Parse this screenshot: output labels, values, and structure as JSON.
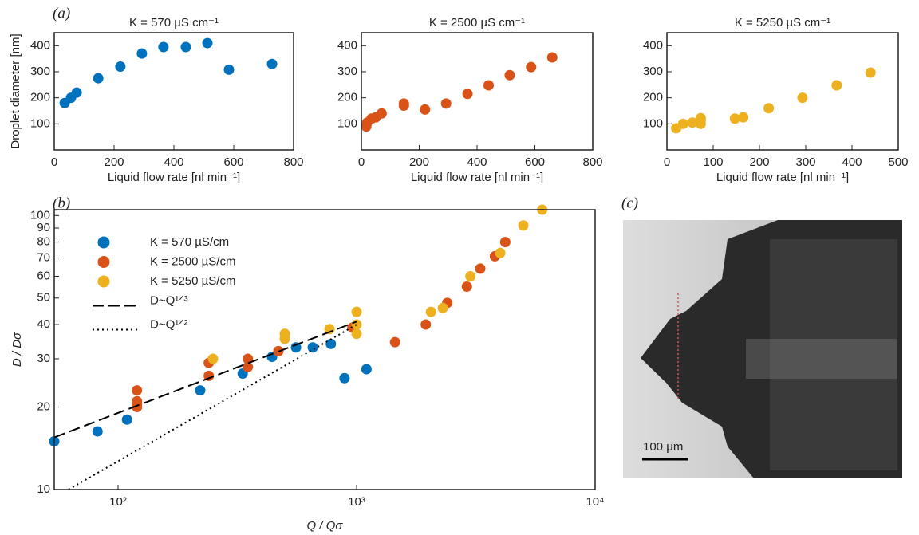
{
  "chart_data": [
    {
      "type": "scatter",
      "panel_label": "(a)",
      "title": "K = 570 µS cm⁻¹",
      "x_label": "Liquid flow rate [nl min⁻¹]",
      "y_label": "Droplet diameter [nm]",
      "xlim": [
        0,
        800
      ],
      "xticks": [
        0,
        200,
        400,
        600,
        800
      ],
      "ylim": [
        0,
        450
      ],
      "yticks": [
        100,
        200,
        300,
        400
      ],
      "series": [
        {
          "color": "#0072bd",
          "x": [
            35,
            56,
            75,
            147,
            221,
            293,
            365,
            440,
            512,
            584,
            728
          ],
          "values": [
            180,
            200,
            220,
            275,
            320,
            370,
            395,
            395,
            410,
            308,
            330
          ]
        }
      ]
    },
    {
      "type": "scatter",
      "title": "K = 2500 µS cm⁻¹",
      "x_label": "Liquid flow rate [nl min⁻¹]",
      "xlim": [
        0,
        800
      ],
      "xticks": [
        0,
        200,
        400,
        600,
        800
      ],
      "ylim": [
        0,
        450
      ],
      "yticks": [
        100,
        200,
        300,
        400
      ],
      "series": [
        {
          "color": "#d95319",
          "x": [
            17,
            20,
            35,
            50,
            70,
            147,
            147,
            220,
            293,
            367,
            440,
            513,
            587,
            660
          ],
          "values": [
            90,
            105,
            120,
            125,
            140,
            170,
            178,
            155,
            178,
            215,
            248,
            287,
            318,
            355
          ]
        }
      ]
    },
    {
      "type": "scatter",
      "title": "K = 5250 µS cm⁻¹",
      "x_label": "Liquid flow rate [nl min⁻¹]",
      "xlim": [
        0,
        500
      ],
      "xticks": [
        0,
        100,
        200,
        300,
        400,
        500
      ],
      "ylim": [
        0,
        450
      ],
      "yticks": [
        100,
        200,
        300,
        400
      ],
      "series": [
        {
          "color": "#edb120",
          "x": [
            20,
            35,
            55,
            73,
            73,
            73,
            147,
            165,
            220,
            293,
            367,
            440
          ],
          "values": [
            83,
            100,
            105,
            100,
            112,
            122,
            120,
            125,
            160,
            200,
            248,
            297
          ]
        }
      ]
    },
    {
      "type": "scatter",
      "panel_label": "(b)",
      "x_label": "Q / Qσ",
      "y_label": "D / Dσ",
      "log_x": true,
      "log_y": true,
      "legend": "upper left",
      "xlim": [
        54,
        10000
      ],
      "xticks": [
        {
          "value": 100,
          "label": "10²"
        },
        {
          "value": 1000,
          "label": "10³"
        },
        {
          "value": 10000,
          "label": "10⁴"
        }
      ],
      "ylim": [
        10,
        105
      ],
      "yticks": [
        10,
        20,
        30,
        40,
        50,
        60,
        70,
        80,
        90,
        100
      ],
      "series": [
        {
          "name": "K = 570 µS/cm",
          "color": "#0072bd",
          "x": [
            54,
            82,
            109,
            221,
            333,
            442,
            557,
            655,
            780,
            890,
            1100
          ],
          "values": [
            15,
            16.3,
            18,
            23,
            26.5,
            30.5,
            33,
            33,
            34,
            25.5,
            27.5
          ]
        },
        {
          "name": "K = 2500 µS/cm",
          "color": "#d95319",
          "x": [
            120,
            120,
            120,
            120,
            240,
            240,
            350,
            350,
            470,
            960,
            1450,
            1950,
            2400,
            2900,
            3300,
            3800,
            4200
          ],
          "values": [
            23,
            21,
            20.5,
            20,
            29,
            26,
            30,
            28,
            32,
            39,
            34.5,
            40,
            48,
            55,
            64,
            71,
            80
          ]
        },
        {
          "name": "K = 5250 µS/cm",
          "color": "#edb120",
          "x": [
            250,
            500,
            500,
            770,
            1000,
            1000,
            1000,
            2050,
            2300,
            3000,
            4000,
            5000,
            6000
          ],
          "values": [
            30,
            37,
            35.5,
            38.5,
            44.5,
            40,
            37,
            44.5,
            46,
            60,
            73,
            92,
            105
          ]
        },
        {
          "name": "D~Q¹ᐟ³",
          "color": "#000000",
          "mode": "line",
          "dash": "dashed",
          "x": [
            54,
            1000
          ],
          "values": [
            15.5,
            41
          ]
        },
        {
          "name": "D~Q¹ᐟ²",
          "color": "#000000",
          "mode": "line",
          "dash": "dotted",
          "x": [
            62,
            1000
          ],
          "values": [
            10,
            40
          ]
        }
      ]
    }
  ],
  "image": {
    "panel_label": "(c)",
    "scale_bar": "100 μm"
  }
}
